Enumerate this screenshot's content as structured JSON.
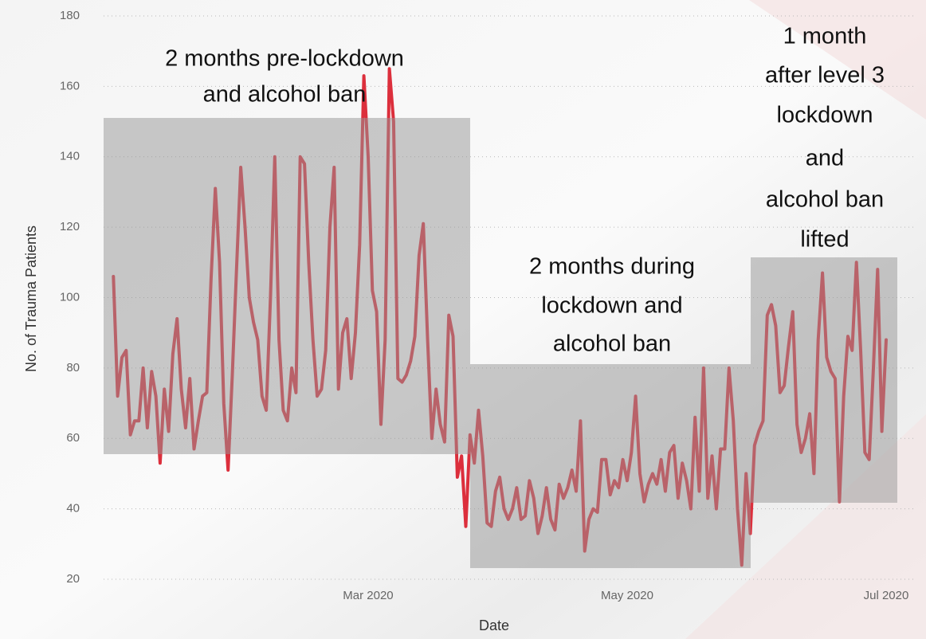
{
  "chart_data": {
    "type": "line",
    "y_label": "No. of Trauma Patients",
    "x_label": "Date",
    "categories": [
      null,
      null,
      null,
      null,
      null,
      null,
      null,
      null,
      null,
      null,
      null,
      null,
      null,
      null,
      null,
      null,
      null,
      null,
      null,
      null,
      null,
      null,
      null,
      null,
      null,
      null,
      null,
      null,
      null,
      null,
      null,
      null,
      null,
      null,
      null,
      null,
      null,
      null,
      null,
      null,
      null,
      null,
      null,
      null,
      null,
      null,
      null,
      null,
      null,
      null,
      null,
      null,
      null,
      null,
      null,
      null,
      null,
      null,
      null,
      null,
      "Mar 2020",
      null,
      null,
      null,
      null,
      null,
      null,
      null,
      null,
      null,
      null,
      null,
      null,
      null,
      null,
      null,
      null,
      null,
      null,
      null,
      null,
      null,
      null,
      null,
      null,
      null,
      null,
      null,
      null,
      null,
      null,
      null,
      null,
      null,
      null,
      null,
      null,
      null,
      null,
      null,
      null,
      null,
      null,
      null,
      null,
      null,
      null,
      null,
      null,
      null,
      null,
      null,
      null,
      null,
      null,
      null,
      null,
      null,
      null,
      null,
      null,
      "May 2020",
      null,
      null,
      null,
      null,
      null,
      null,
      null,
      null,
      null,
      null,
      null,
      null,
      null,
      null,
      null,
      null,
      null,
      null,
      null,
      null,
      null,
      null,
      null,
      null,
      null,
      null,
      null,
      null,
      null,
      null,
      null,
      null,
      null,
      null,
      null,
      null,
      null,
      null,
      null,
      null,
      null,
      null,
      null,
      null,
      null,
      null,
      null,
      null,
      null,
      null,
      null,
      null,
      null,
      null,
      null,
      null,
      null,
      null,
      null,
      null,
      "Jul 2020"
    ],
    "series": [
      {
        "color": "#dc2f3c",
        "values": [
          106,
          72,
          83,
          85,
          61,
          65,
          65,
          80,
          63,
          79,
          72,
          53,
          74,
          62,
          84,
          94,
          74,
          63,
          77,
          57,
          65,
          72,
          73,
          105,
          131,
          110,
          70,
          51,
          78,
          108,
          137,
          120,
          100,
          93,
          88,
          72,
          68,
          100,
          140,
          88,
          68,
          65,
          80,
          73,
          140,
          138,
          110,
          88,
          72,
          74,
          85,
          120,
          137,
          74,
          90,
          94,
          77,
          90,
          115,
          163,
          140,
          102,
          96,
          64,
          88,
          165,
          150,
          77,
          76,
          78,
          82,
          89,
          112,
          121,
          88,
          60,
          74,
          64,
          59,
          95,
          89,
          49,
          55,
          35,
          61,
          53,
          68,
          55,
          36,
          35,
          45,
          49,
          40,
          37,
          40,
          46,
          37,
          38,
          48,
          43,
          33,
          38,
          46,
          37,
          34,
          47,
          43,
          46,
          51,
          45,
          65,
          28,
          37,
          40,
          39,
          54,
          54,
          44,
          48,
          46,
          54,
          48,
          56,
          72,
          50,
          42,
          47,
          50,
          47,
          54,
          45,
          56,
          58,
          43,
          53,
          48,
          40,
          66,
          45,
          80,
          43,
          55,
          40,
          57,
          57,
          80,
          65,
          40,
          24,
          50,
          33,
          58,
          62,
          65,
          95,
          98,
          92,
          73,
          75,
          86,
          96,
          64,
          56,
          60,
          67,
          50,
          88,
          107,
          83,
          79,
          77,
          42,
          72,
          89,
          85,
          110,
          85,
          56,
          54,
          80,
          108,
          62,
          88
        ]
      }
    ],
    "ylim": [
      20,
      180
    ],
    "yticks": [
      20,
      40,
      60,
      80,
      100,
      120,
      140,
      160,
      180
    ],
    "grid": true,
    "annotations": [
      [
        "2 months pre-lockdown",
        "and alcohol ban"
      ],
      [
        "2 months during",
        "lockdown and",
        "alcohol ban"
      ],
      [
        "1 month",
        "after level 3",
        "lockdown",
        "and",
        "alcohol ban",
        "lifted"
      ]
    ]
  }
}
